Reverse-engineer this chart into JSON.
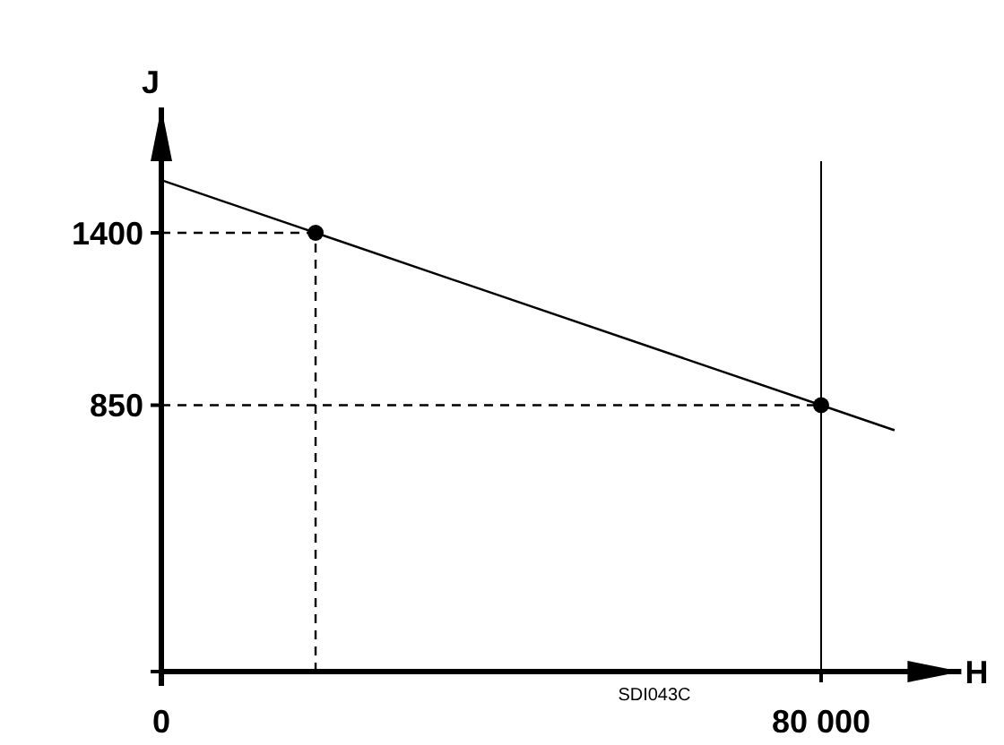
{
  "chart_data": {
    "type": "line",
    "xlabel": "H",
    "ylabel": "J",
    "annotations": [
      "SDI043C"
    ],
    "xlim": [
      0,
      97000
    ],
    "ylim": [
      0,
      1800
    ],
    "xticks": [
      {
        "value": 0,
        "label": "0"
      },
      {
        "value": 80000,
        "label": "80 000"
      }
    ],
    "yticks": [
      {
        "value": 0,
        "label": null
      },
      850,
      1400
    ],
    "grid": false,
    "series": [
      {
        "type": "line",
        "color": "#000000",
        "x": [
          0,
          18700,
          80000,
          88900
        ],
        "values": [
          1568,
          1400,
          850,
          770
        ],
        "marker": "none",
        "line_style": "solid"
      },
      {
        "type": "line",
        "color": "#000000",
        "x": [
          0,
          18700
        ],
        "values": [
          1400,
          1400
        ],
        "marker": "none",
        "line_style": "dashed"
      },
      {
        "type": "line",
        "color": "#000000",
        "x": [
          18700,
          18700
        ],
        "values": [
          0,
          1400
        ],
        "marker": "none",
        "line_style": "dashed"
      },
      {
        "type": "line",
        "color": "#000000",
        "x": [
          0,
          80000
        ],
        "values": [
          850,
          850
        ],
        "marker": "none",
        "line_style": "dashed"
      },
      {
        "type": "scatter",
        "color": "#000000",
        "x": [
          18700,
          80000
        ],
        "values": [
          1400,
          850
        ],
        "marker": "circle"
      }
    ],
    "ref_lines": [
      {
        "axis": "x",
        "value": 80000,
        "color": "#000000",
        "line_style": "solid"
      }
    ]
  }
}
